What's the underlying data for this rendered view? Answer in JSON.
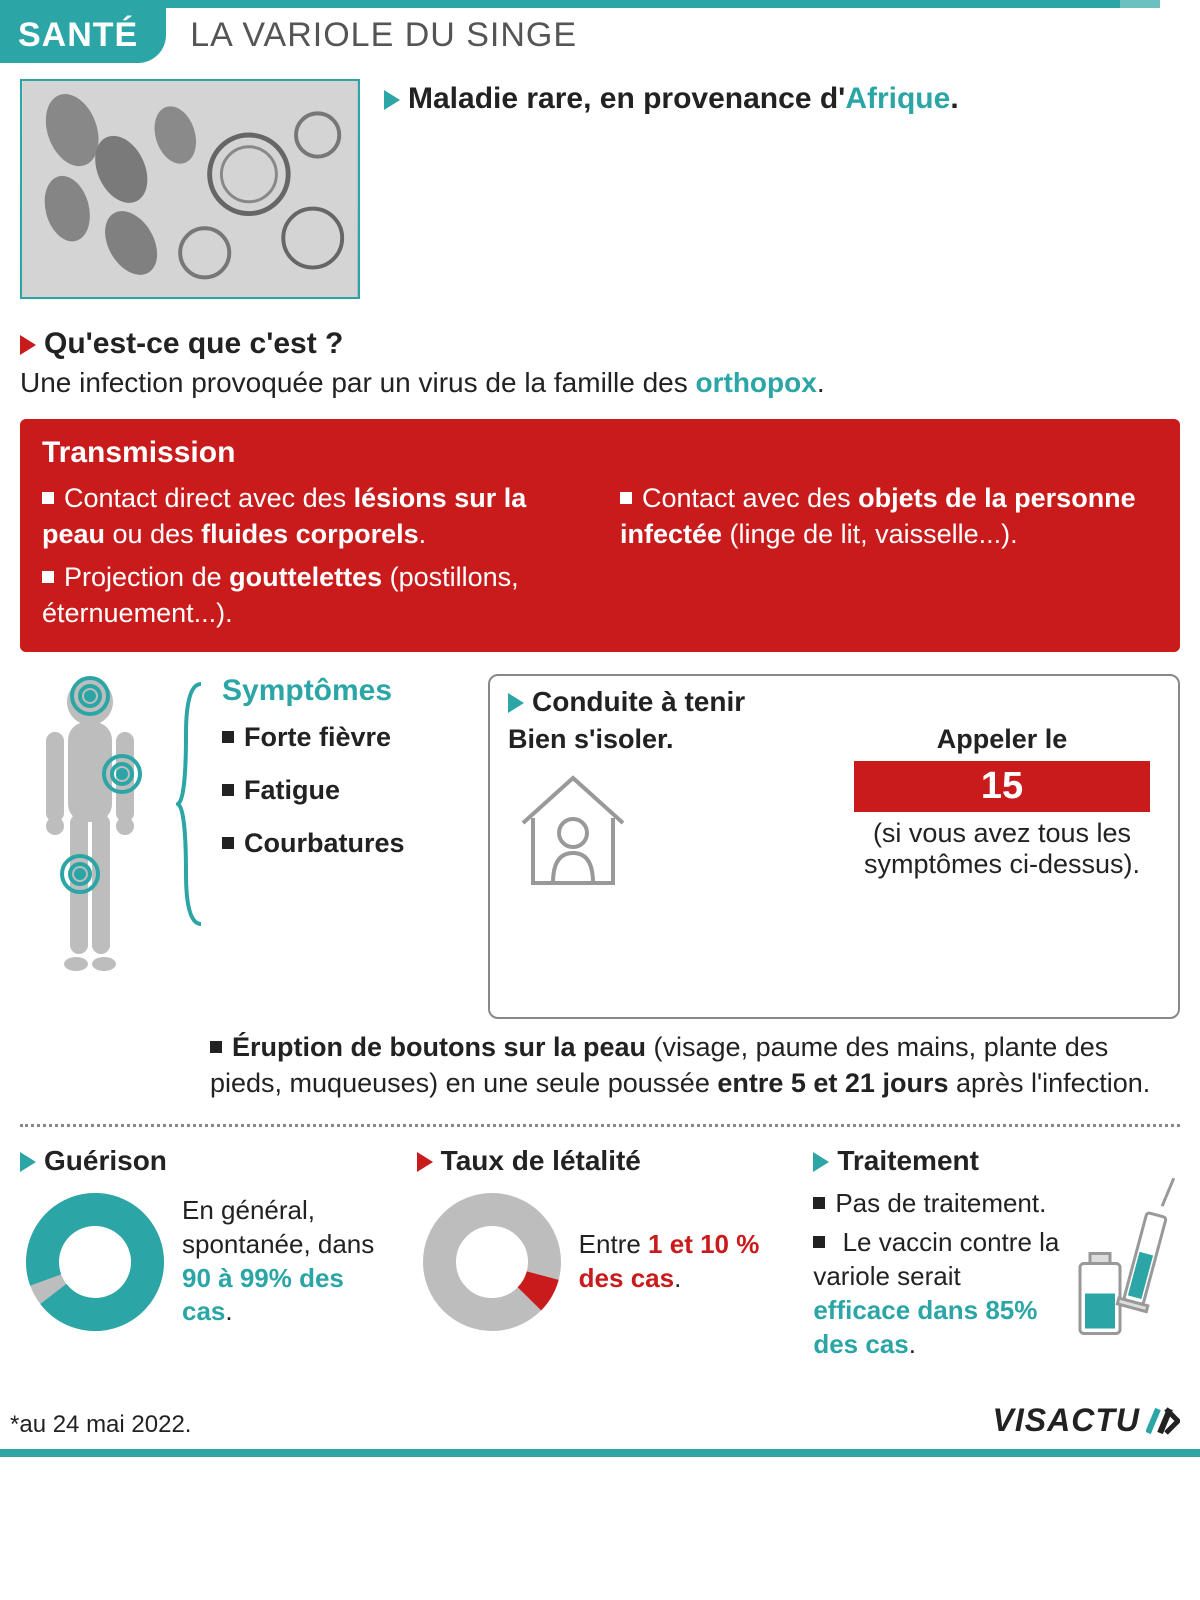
{
  "colors": {
    "teal": "#2ba5a5",
    "red": "#c91b1b",
    "grey": "#bdbdbd",
    "text": "#222222",
    "subtext": "#555555"
  },
  "header": {
    "tag": "SANTÉ",
    "title": "LA VARIOLE DU SINGE"
  },
  "intro": {
    "text_before": "Maladie rare, en provenance d'",
    "highlight": "Afrique",
    "text_after": "."
  },
  "what": {
    "q": "Qu'est-ce que c'est ?",
    "a_before": "Une infection provoquée par un virus de la famille des ",
    "highlight": "orthopox",
    "a_after": "."
  },
  "transmission": {
    "title": "Transmission",
    "left": [
      "Contact direct avec des <b>lésions sur la peau</b> ou des <b>fluides corporels</b>.",
      "Projection de <b>gouttelettes</b> (postillons, éternuement...)."
    ],
    "right": [
      "Contact avec des <b>objets de la personne infectée</b> (linge de lit, vaisselle...)."
    ]
  },
  "symptoms": {
    "title": "Symptômes",
    "items": [
      "Forte fièvre",
      "Fatigue",
      "Courbatures"
    ]
  },
  "conduite": {
    "title": "Conduite à tenir",
    "isol": "Bien s'isoler.",
    "call": "Appeler le",
    "number": "15",
    "note": "(si vous avez tous les symptômes ci-dessus)."
  },
  "eruption": "<b>Éruption de boutons sur la peau</b> (visage, paume des mains, plante des pieds, muqueuses) en une seule poussée <b>entre 5 et 21 jours</b> après l'infection.",
  "recovery": {
    "title": "Guérison",
    "donut_pct": 95,
    "donut_color": "#2ba5a5",
    "donut_bg": "#bdbdbd",
    "text_before": "En général, spontanée, dans ",
    "highlight": "90 à 99% des cas",
    "text_after": "."
  },
  "lethality": {
    "title": "Taux de létalité",
    "donut_pct": 8,
    "donut_color": "#c91b1b",
    "donut_bg": "#bdbdbd",
    "text_before": "Entre ",
    "highlight": "1 et 10 % des cas",
    "text_after": "."
  },
  "treatment": {
    "title": "Traitement",
    "item1": "Pas de traitement.",
    "item2_before": "Le vaccin contre la variole serait ",
    "item2_highlight": "efficace dans 85% des cas",
    "item2_after": "."
  },
  "footer": {
    "note": "*au 24 mai 2022.",
    "logo": "VISACTU"
  }
}
